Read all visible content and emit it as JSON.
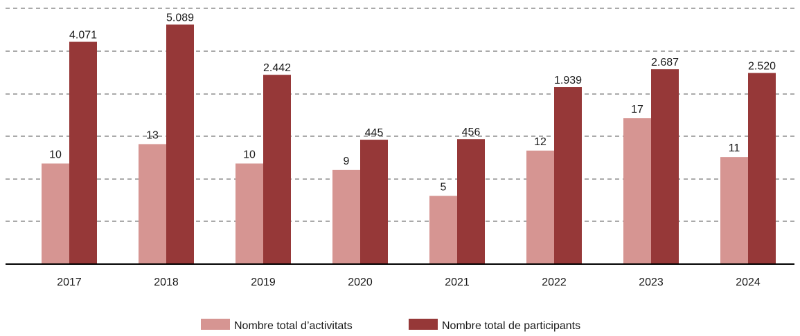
{
  "chart_data": {
    "type": "bar",
    "categories": [
      "2017",
      "2018",
      "2019",
      "2020",
      "2021",
      "2022",
      "2023",
      "2024"
    ],
    "series": [
      {
        "name": "Nombre total d’activitats",
        "color": "#d69592",
        "values": [
          10,
          13,
          10,
          9,
          5,
          12,
          17,
          11
        ],
        "labels": [
          "10",
          "13",
          "10",
          "9",
          "5",
          "12",
          "17",
          "11"
        ]
      },
      {
        "name": "Nombre total de participants",
        "color": "#963838",
        "values": [
          4071,
          5089,
          2442,
          445,
          456,
          1939,
          2687,
          2520
        ],
        "labels": [
          "4.071",
          "5.089",
          "2.442",
          "445",
          "456",
          "1.939",
          "2.687",
          "2.520"
        ]
      }
    ],
    "grid": true,
    "legend": "bottom-center",
    "title": "",
    "xlabel": "",
    "ylabel": ""
  }
}
